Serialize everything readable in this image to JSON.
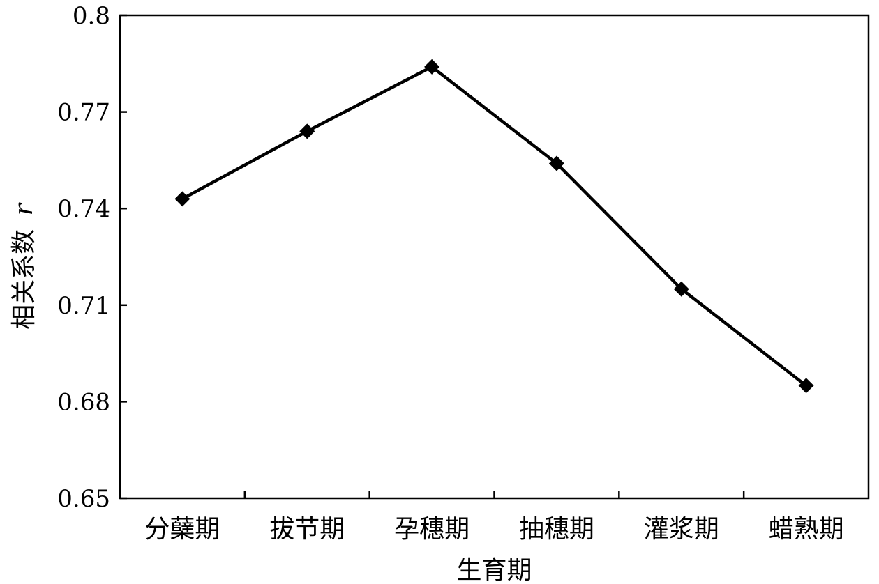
{
  "chart_data": {
    "type": "line",
    "categories": [
      "分蘖期",
      "拔节期",
      "孕穗期",
      "抽穗期",
      "灌浆期",
      "蜡熟期"
    ],
    "series": [
      {
        "values": [
          0.743,
          0.764,
          0.784,
          0.754,
          0.715,
          0.685
        ]
      }
    ],
    "xlabel": "生育期",
    "ylabel": "相关系数",
    "ylabel_symbol": "r",
    "ylim": [
      0.65,
      0.8
    ],
    "yticks": [
      0.65,
      0.68,
      0.71,
      0.74,
      0.77,
      0.8
    ],
    "ytick_labels": [
      "0.65",
      "0.68",
      "0.71",
      "0.74",
      "0.77",
      "0.8"
    ],
    "grid": false,
    "legend": "none",
    "marker": "diamond",
    "colors": {
      "line": "#000000",
      "marker": "#000000",
      "axis": "#000000",
      "background": "#ffffff"
    }
  }
}
